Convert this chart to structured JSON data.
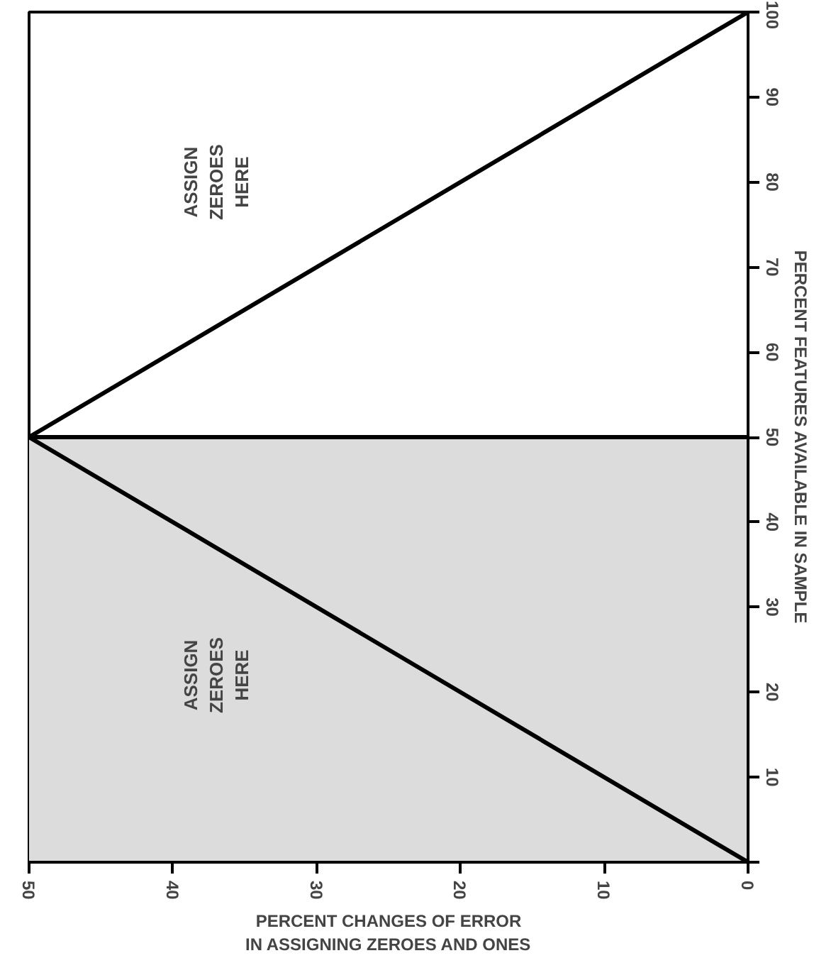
{
  "chart_data": {
    "type": "line",
    "xlabel": "PERCENT CHANGES OF ERROR\nIN ASSIGNING ZEROES AND ONES",
    "ylabel": "PERCENT FEATURES AVAILABLE IN SAMPLE",
    "series": [
      {
        "color": "#000000",
        "x": [
          0,
          25,
          50,
          25,
          0
        ],
        "values": [
          0,
          25,
          50,
          75,
          100
        ]
      }
    ],
    "xlim": [
      50,
      0
    ],
    "xticks": [
      0,
      10,
      20,
      30,
      40,
      50
    ],
    "ylim": [
      0,
      100
    ],
    "yticks": [
      {
        "value": 0,
        "label": null
      },
      10,
      20,
      30,
      40,
      50,
      60,
      70,
      80,
      90,
      100
    ],
    "ref_lines": [
      {
        "axis": "y",
        "value": 50,
        "color": "#000000"
      }
    ],
    "bands": [
      {
        "axis": "y",
        "from": 0,
        "to": 50,
        "color": "#dcdcdc"
      }
    ],
    "annotations": [
      "ASSIGN\nZEROES\nHERE",
      "ASSIGN\nZEROES\nHERE"
    ],
    "grid": false,
    "marker": "none",
    "line_style": "solid"
  }
}
